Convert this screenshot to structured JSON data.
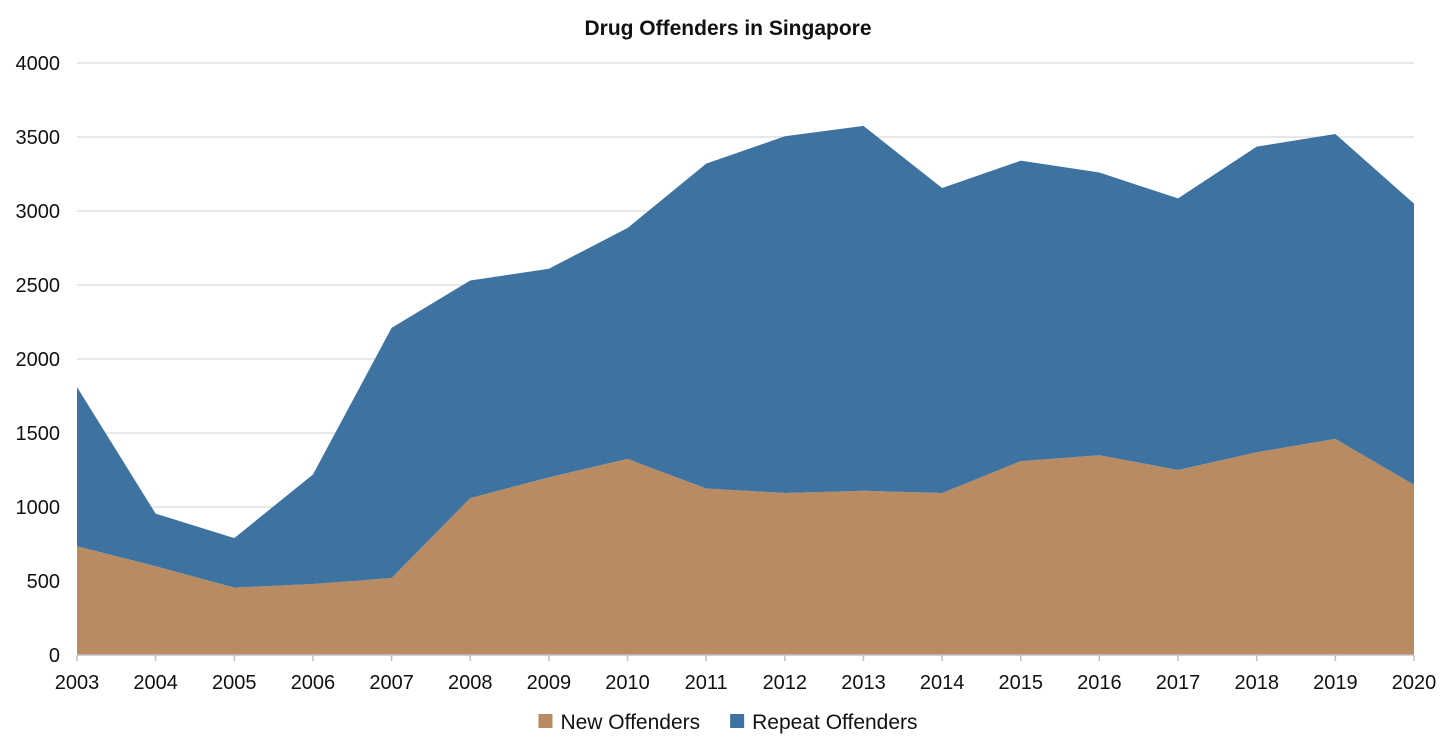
{
  "chart_data": {
    "type": "area",
    "stacked": true,
    "title": "Drug Offenders in Singapore",
    "xlabel": "",
    "ylabel": "",
    "categories": [
      "2003",
      "2004",
      "2005",
      "2006",
      "2007",
      "2008",
      "2009",
      "2010",
      "2011",
      "2012",
      "2013",
      "2014",
      "2015",
      "2016",
      "2017",
      "2018",
      "2019",
      "2020"
    ],
    "ylim": [
      0,
      4000
    ],
    "yticks": [
      0,
      500,
      1000,
      1500,
      2000,
      2500,
      3000,
      3500,
      4000
    ],
    "grid": true,
    "legend_position": "bottom",
    "series": [
      {
        "name": "New Offenders",
        "color": "#b88b62",
        "values": [
          735,
          600,
          455,
          480,
          520,
          1060,
          1200,
          1325,
          1125,
          1095,
          1110,
          1095,
          1310,
          1350,
          1250,
          1370,
          1460,
          1150
        ]
      },
      {
        "name": "Repeat Offenders",
        "color": "#3e73a1",
        "values": [
          1075,
          355,
          335,
          740,
          1690,
          1470,
          1410,
          1560,
          2195,
          2410,
          2465,
          2060,
          2030,
          1910,
          1835,
          2065,
          2060,
          1900
        ]
      }
    ],
    "grid_color": "#d0d0d0",
    "axis_color": "#bfbfbf"
  }
}
